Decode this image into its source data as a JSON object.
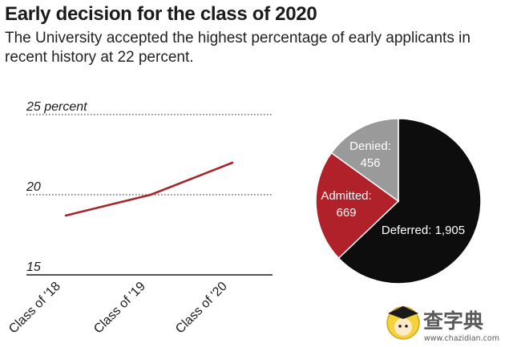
{
  "title": "Early decision for the class of 2020",
  "subtitle": "The University accepted the highest percentage of early applicants in recent history at 22 percent.",
  "chart_data": [
    {
      "type": "line",
      "categories": [
        "Class of '18",
        "Class of '19",
        "Class of '20"
      ],
      "series": [
        {
          "values": [
            18.7,
            20.0,
            22.0
          ]
        }
      ],
      "yticks": [
        {
          "value": 25,
          "label": "25 percent"
        },
        {
          "value": 20,
          "label": "20"
        },
        {
          "value": 15,
          "label": "15"
        }
      ],
      "ylim": [
        15,
        25
      ],
      "grid": true,
      "line_color": "#a6262a"
    },
    {
      "type": "pie",
      "slices": [
        {
          "name": "Deferred",
          "value": 1905,
          "label": "Deferred: 1,905",
          "color": "#0d0d0d"
        },
        {
          "name": "Admitted",
          "value": 669,
          "label_line1": "Admitted:",
          "label_line2": "669",
          "color": "#b1212a"
        },
        {
          "name": "Denied",
          "value": 456,
          "label_line1": "Denied:",
          "label_line2": "456",
          "color": "#9a9a9a"
        }
      ]
    }
  ],
  "watermark": {
    "text": "查字典",
    "url": "www.chazidian.com"
  }
}
